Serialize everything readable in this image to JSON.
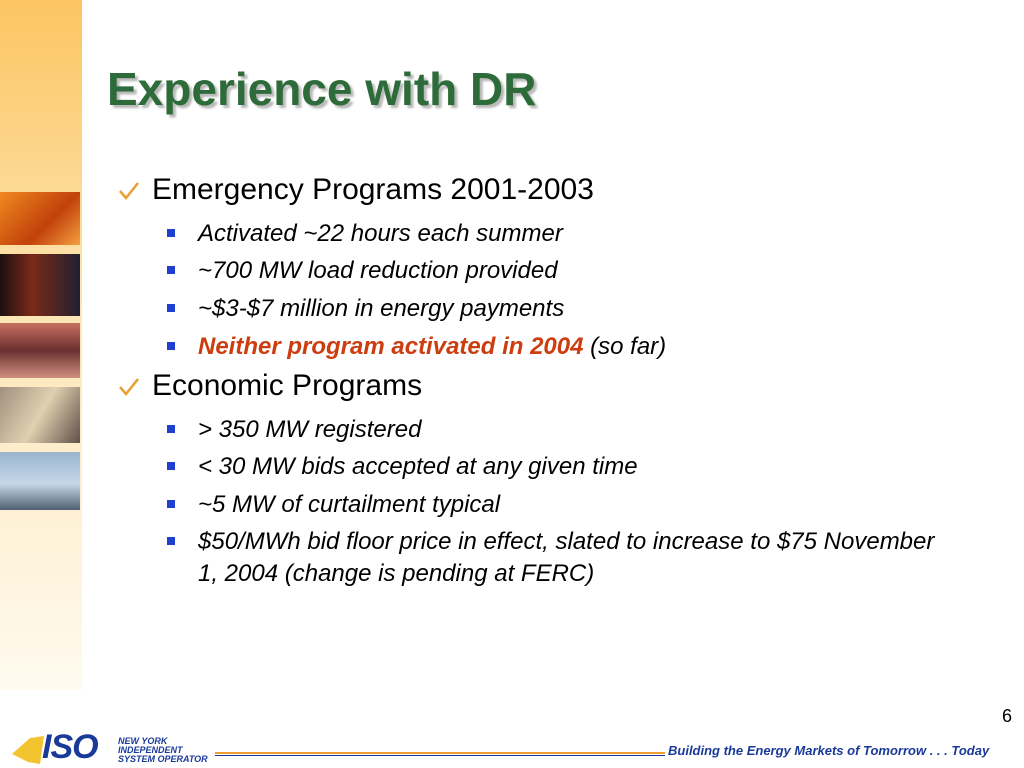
{
  "title": "Experience with DR",
  "sections": [
    {
      "heading": "Emergency Programs 2001-2003",
      "items": [
        "Activated ~22 hours each summer",
        "~700 MW load reduction provided",
        "~$3-$7 million in energy payments",
        {
          "highlight": "Neither program activated in 2004",
          "text": "(so far)"
        }
      ]
    },
    {
      "heading": "Economic Programs",
      "items": [
        "> 350 MW registered",
        "< 30 MW bids accepted at any given time",
        "~5 MW of curtailment typical",
        "$50/MWh bid floor price in effect, slated to increase to $75 November 1, 2004 (change is pending at FERC)"
      ]
    }
  ],
  "footer": {
    "page_number": "6",
    "tagline": "Building the Energy Markets of Tomorrow . . . Today",
    "logo": {
      "mark": "ISO",
      "lines": [
        "NEW YORK",
        "INDEPENDENT",
        "SYSTEM OPERATOR"
      ]
    }
  }
}
